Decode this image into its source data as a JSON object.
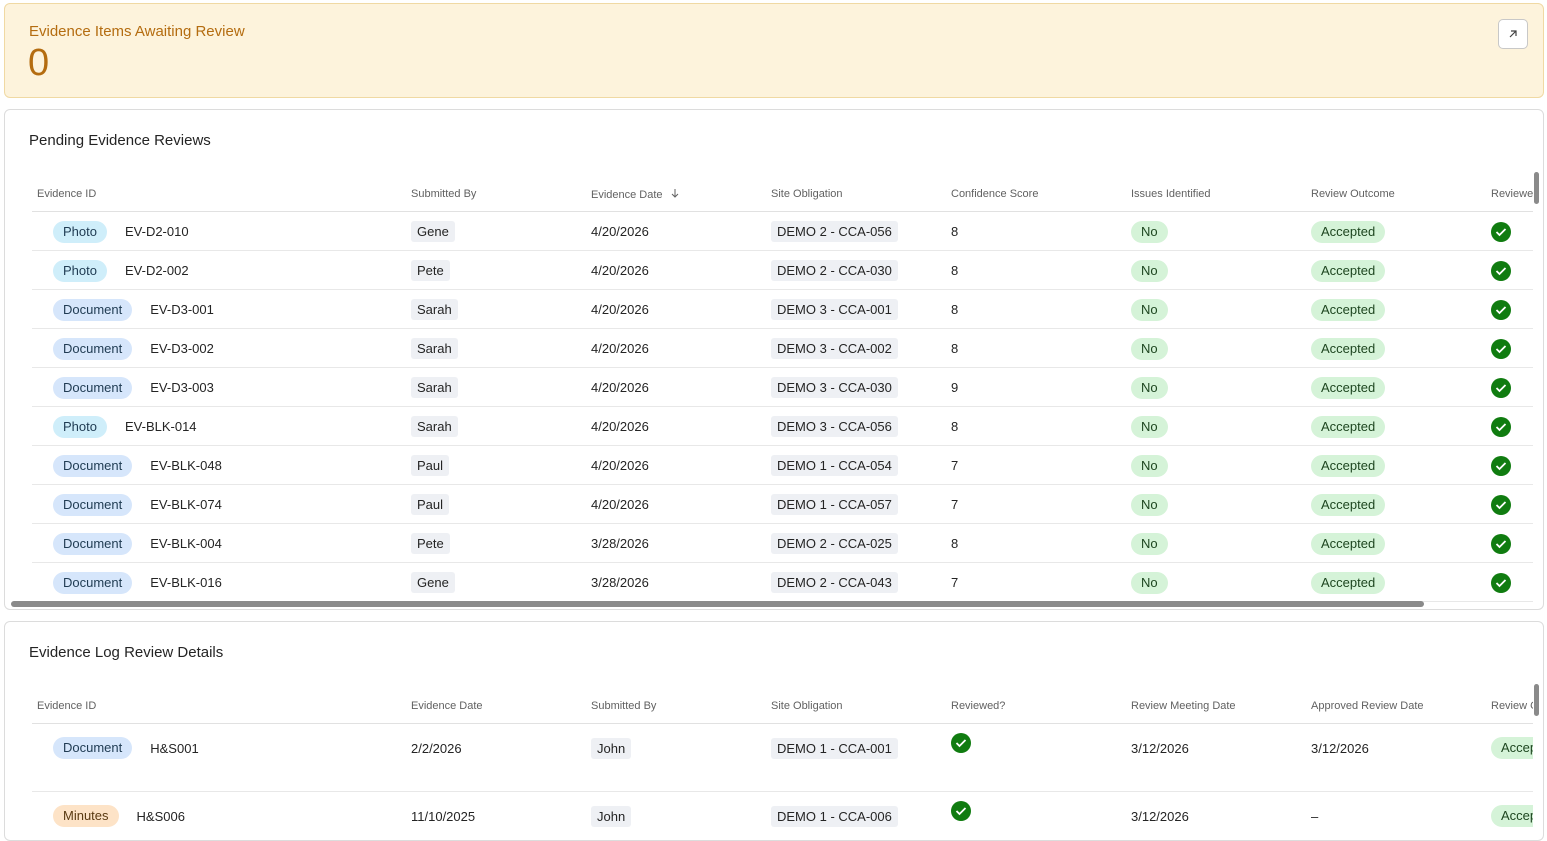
{
  "kpi": {
    "title": "Evidence Items Awaiting Review",
    "value": "0",
    "color": "#b46c10",
    "expand_icon": "arrow-up-right-icon"
  },
  "pending": {
    "title": "Pending Evidence Reviews",
    "columns": [
      "Evidence ID",
      "Submitted By",
      "Evidence Date",
      "Site Obligation",
      "Confidence Score",
      "Issues Identified",
      "Review Outcome",
      "Reviewed"
    ],
    "sort_icon": "arrow-down-icon",
    "rows": [
      {
        "type": "Photo",
        "id": "EV-D2-010",
        "by": "Gene",
        "date": "4/20/2026",
        "obligation": "DEMO 2 - CCA-056",
        "score": "8",
        "issues": "No",
        "outcome": "Accepted"
      },
      {
        "type": "Photo",
        "id": "EV-D2-002",
        "by": "Pete",
        "date": "4/20/2026",
        "obligation": "DEMO 2 - CCA-030",
        "score": "8",
        "issues": "No",
        "outcome": "Accepted"
      },
      {
        "type": "Document",
        "id": "EV-D3-001",
        "by": "Sarah",
        "date": "4/20/2026",
        "obligation": "DEMO 3 - CCA-001",
        "score": "8",
        "issues": "No",
        "outcome": "Accepted"
      },
      {
        "type": "Document",
        "id": "EV-D3-002",
        "by": "Sarah",
        "date": "4/20/2026",
        "obligation": "DEMO 3 - CCA-002",
        "score": "8",
        "issues": "No",
        "outcome": "Accepted"
      },
      {
        "type": "Document",
        "id": "EV-D3-003",
        "by": "Sarah",
        "date": "4/20/2026",
        "obligation": "DEMO 3 - CCA-030",
        "score": "9",
        "issues": "No",
        "outcome": "Accepted"
      },
      {
        "type": "Photo",
        "id": "EV-BLK-014",
        "by": "Sarah",
        "date": "4/20/2026",
        "obligation": "DEMO 3 - CCA-056",
        "score": "8",
        "issues": "No",
        "outcome": "Accepted"
      },
      {
        "type": "Document",
        "id": "EV-BLK-048",
        "by": "Paul",
        "date": "4/20/2026",
        "obligation": "DEMO 1 - CCA-054",
        "score": "7",
        "issues": "No",
        "outcome": "Accepted"
      },
      {
        "type": "Document",
        "id": "EV-BLK-074",
        "by": "Paul",
        "date": "4/20/2026",
        "obligation": "DEMO 1 - CCA-057",
        "score": "7",
        "issues": "No",
        "outcome": "Accepted"
      },
      {
        "type": "Document",
        "id": "EV-BLK-004",
        "by": "Pete",
        "date": "3/28/2026",
        "obligation": "DEMO 2 - CCA-025",
        "score": "8",
        "issues": "No",
        "outcome": "Accepted"
      },
      {
        "type": "Document",
        "id": "EV-BLK-016",
        "by": "Gene",
        "date": "3/28/2026",
        "obligation": "DEMO 2 - CCA-043",
        "score": "7",
        "issues": "No",
        "outcome": "Accepted"
      }
    ]
  },
  "log": {
    "title": "Evidence Log Review Details",
    "columns": [
      "Evidence ID",
      "Evidence Date",
      "Submitted By",
      "Site Obligation",
      "Reviewed?",
      "Review Meeting Date",
      "Approved Review Date",
      "Review O"
    ],
    "rows": [
      {
        "type": "Document",
        "id": "H&S001",
        "date": "2/2/2026",
        "by": "John",
        "obligation": "DEMO 1 - CCA-001",
        "meeting": "3/12/2026",
        "approved": "3/12/2026",
        "outcome": "Accept"
      },
      {
        "type": "Minutes",
        "id": "H&S006",
        "date": "11/10/2025",
        "by": "John",
        "obligation": "DEMO 1 - CCA-006",
        "meeting": "3/12/2026",
        "approved": "–",
        "outcome": "Accept"
      }
    ]
  }
}
